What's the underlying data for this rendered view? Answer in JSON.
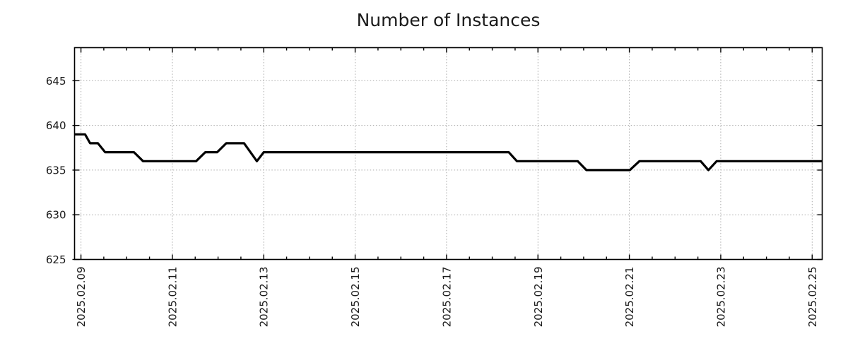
{
  "chart_data": {
    "type": "line",
    "title": "Number of Instances",
    "legend": "none",
    "grid": {
      "style": "dotted",
      "color": "#a8a8a8"
    },
    "x_axis": {
      "tick_labels": [
        "2025.02.09",
        "2025.02.11",
        "2025.02.13",
        "2025.02.15",
        "2025.02.17",
        "2025.02.19",
        "2025.02.21",
        "2025.02.23",
        "2025.02.25"
      ],
      "tick_positions_days": [
        0,
        2,
        4,
        6,
        8,
        10,
        12,
        14,
        16
      ],
      "minor_tick_interval_days": 0.5,
      "range_days": [
        -0.14,
        16.22
      ],
      "label_rotation_deg": -90
    },
    "y_axis": {
      "tick_labels": [
        "625",
        "630",
        "635",
        "640",
        "645"
      ],
      "tick_values": [
        625,
        630,
        635,
        640,
        645
      ],
      "range": [
        625,
        648.7
      ]
    },
    "series": [
      {
        "name": "Number of Instances",
        "color": "#000000",
        "line_width": 3.2,
        "points": [
          [
            -0.14,
            639
          ],
          [
            0.09,
            639
          ],
          [
            0.2,
            638
          ],
          [
            0.37,
            638
          ],
          [
            0.53,
            637
          ],
          [
            1.16,
            637
          ],
          [
            1.36,
            636
          ],
          [
            2.52,
            636
          ],
          [
            2.72,
            637
          ],
          [
            2.98,
            637
          ],
          [
            3.18,
            638
          ],
          [
            3.57,
            638
          ],
          [
            3.85,
            636
          ],
          [
            4.0,
            637
          ],
          [
            9.36,
            637
          ],
          [
            9.54,
            636
          ],
          [
            10.87,
            636
          ],
          [
            11.06,
            635
          ],
          [
            12.01,
            635
          ],
          [
            12.22,
            636
          ],
          [
            13.56,
            636
          ],
          [
            13.73,
            635
          ],
          [
            13.91,
            636
          ],
          [
            16.22,
            636
          ]
        ]
      }
    ]
  },
  "colors": {
    "axis": "#000000",
    "text": "#1a1a1a",
    "grid": "#a8a8a8",
    "line": "#000000",
    "background": "#ffffff"
  }
}
